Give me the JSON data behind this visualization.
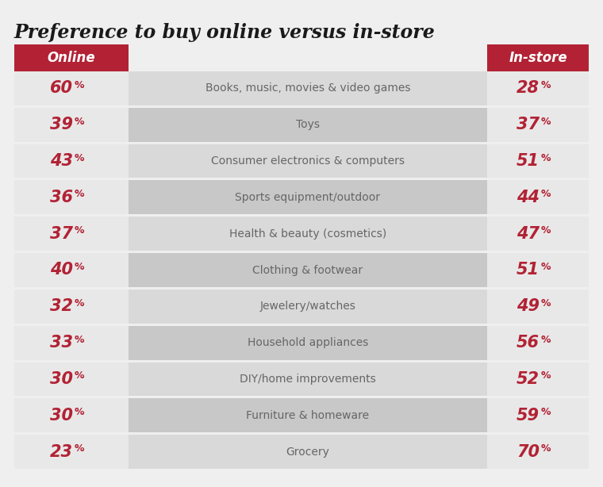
{
  "title": "Preference to buy online versus in-store",
  "header_online": "Online",
  "header_instore": "In-store",
  "categories": [
    "Books, music, movies & video games",
    "Toys",
    "Consumer electronics & computers",
    "Sports equipment/outdoor",
    "Health & beauty (cosmetics)",
    "Clothing & footwear",
    "Jewelery/watches",
    "Household appliances",
    "DIY/home improvements",
    "Furniture & homeware",
    "Grocery"
  ],
  "online_values": [
    60,
    39,
    43,
    36,
    37,
    40,
    32,
    33,
    30,
    30,
    23
  ],
  "instore_values": [
    28,
    37,
    51,
    44,
    47,
    51,
    49,
    56,
    52,
    59,
    70
  ],
  "header_bg_color": "#b22234",
  "row_col_mid_dark": "#c8c8c8",
  "row_col_mid_light": "#d9d9d9",
  "row_col_side": "#e8e8e8",
  "outer_bg_color": "#efefef",
  "white_gap": "#efefef",
  "value_color": "#b22234",
  "category_text_color": "#666666",
  "title_color": "#1a1a1a",
  "header_text_color": "#ffffff",
  "percent_large_fontsize": 15,
  "percent_small_fontsize": 9,
  "category_fontsize": 10,
  "header_fontsize": 12,
  "title_fontsize": 17
}
